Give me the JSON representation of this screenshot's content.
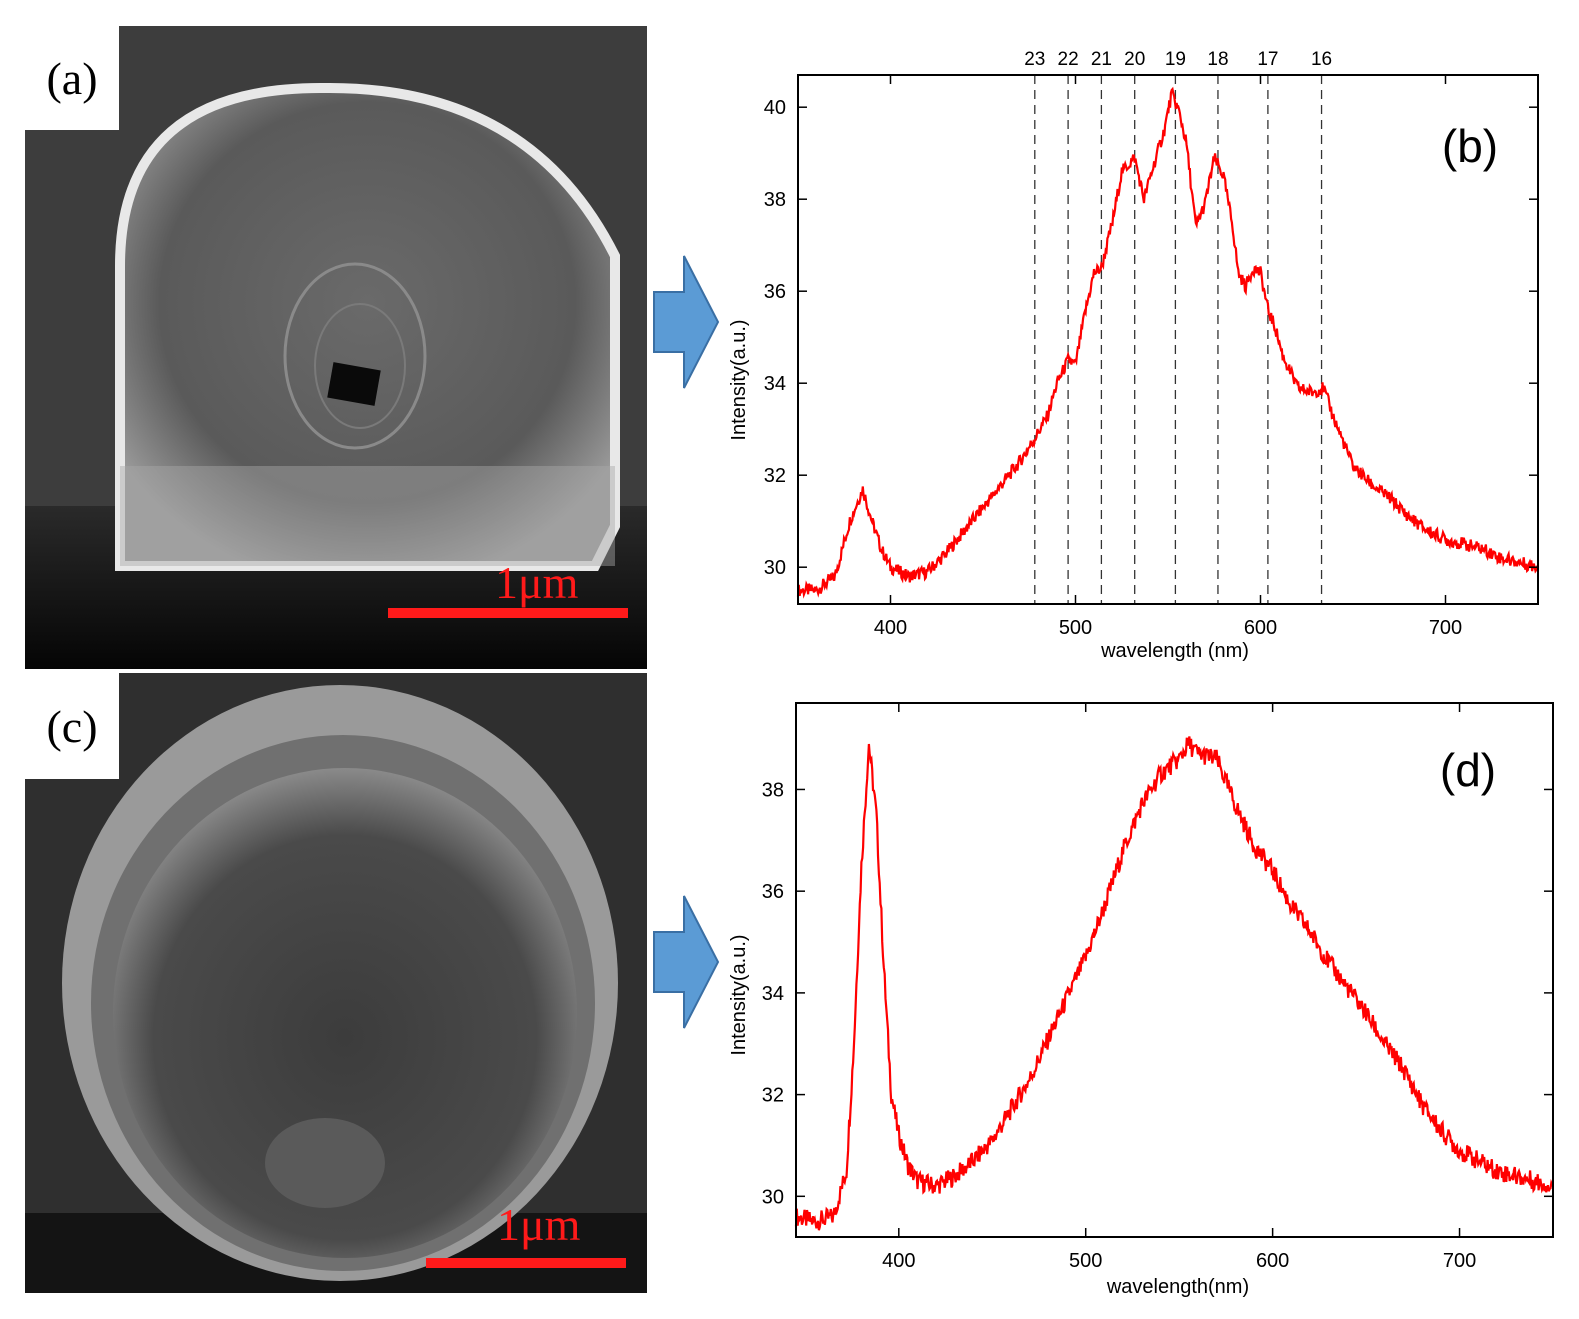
{
  "figure": {
    "panels": [
      {
        "label": "(a)",
        "scale_text": "1μm"
      },
      {
        "label": "(c)",
        "scale_text": "1μm"
      }
    ],
    "arrow_color": "#5b9bd5",
    "line_color": "#ff0000"
  },
  "chart_data": [
    {
      "type": "line",
      "panel_label": "(b)",
      "xlabel": "wavelength (nm)",
      "ylabel": "Intensity(a.u.)",
      "xlim": [
        350,
        750
      ],
      "ylim": [
        29.2,
        40.7
      ],
      "xticks": [
        400,
        500,
        600,
        700
      ],
      "yticks": [
        30,
        32,
        34,
        36,
        38,
        40
      ],
      "mode_lines": [
        {
          "label": "23",
          "x": 478
        },
        {
          "label": "22",
          "x": 496
        },
        {
          "label": "21",
          "x": 514
        },
        {
          "label": "20",
          "x": 532
        },
        {
          "label": "19",
          "x": 554
        },
        {
          "label": "18",
          "x": 577
        },
        {
          "label": "17",
          "x": 604
        },
        {
          "label": "16",
          "x": 633
        }
      ],
      "series": [
        {
          "x": [
            350,
            360,
            370,
            378,
            385,
            390,
            395,
            400,
            405,
            410,
            420,
            430,
            440,
            450,
            460,
            470,
            478,
            485,
            490,
            496,
            500,
            505,
            510,
            514,
            520,
            525,
            532,
            537,
            542,
            548,
            552,
            556,
            560,
            565,
            570,
            575,
            580,
            585,
            588,
            592,
            596,
            600,
            604,
            608,
            612,
            620,
            628,
            634,
            640,
            650,
            660,
            670,
            680,
            690,
            700,
            710,
            720,
            730,
            740,
            750
          ],
          "y": [
            29.5,
            29.5,
            29.8,
            31.0,
            31.7,
            31.0,
            30.4,
            30.0,
            29.9,
            29.8,
            29.9,
            30.3,
            30.8,
            31.3,
            31.8,
            32.3,
            32.8,
            33.3,
            34.0,
            34.5,
            34.4,
            35.5,
            36.4,
            36.5,
            37.5,
            38.6,
            38.9,
            38.0,
            38.7,
            39.5,
            40.3,
            39.9,
            39.2,
            37.4,
            37.9,
            38.9,
            38.5,
            37.4,
            36.4,
            36.1,
            36.5,
            36.4,
            35.6,
            35.2,
            34.6,
            33.9,
            33.8,
            33.9,
            33.2,
            32.2,
            31.8,
            31.5,
            31.1,
            30.8,
            30.6,
            30.5,
            30.4,
            30.2,
            30.1,
            30.0
          ]
        }
      ]
    },
    {
      "type": "line",
      "panel_label": "(d)",
      "xlabel": "wavelength(nm)",
      "ylabel": "Intensity(a.u.)",
      "xlim": [
        345,
        750
      ],
      "ylim": [
        29.2,
        39.7
      ],
      "xticks": [
        400,
        500,
        600,
        700
      ],
      "yticks": [
        30,
        32,
        34,
        36,
        38
      ],
      "series": [
        {
          "x": [
            345,
            355,
            365,
            372,
            376,
            380,
            384,
            388,
            392,
            396,
            400,
            405,
            410,
            420,
            430,
            440,
            450,
            460,
            470,
            480,
            490,
            500,
            510,
            520,
            530,
            540,
            550,
            555,
            560,
            570,
            580,
            590,
            600,
            610,
            620,
            630,
            640,
            650,
            660,
            670,
            680,
            690,
            700,
            710,
            720,
            730,
            740,
            750
          ],
          "y": [
            29.6,
            29.5,
            29.6,
            30.5,
            33.0,
            36.5,
            38.9,
            37.5,
            34.5,
            32.0,
            31.2,
            30.6,
            30.3,
            30.2,
            30.4,
            30.7,
            31.1,
            31.7,
            32.3,
            33.1,
            33.9,
            34.7,
            35.7,
            36.8,
            37.7,
            38.3,
            38.6,
            38.9,
            38.7,
            38.6,
            37.7,
            36.9,
            36.4,
            35.7,
            35.2,
            34.6,
            34.1,
            33.6,
            33.0,
            32.5,
            31.8,
            31.3,
            30.9,
            30.7,
            30.5,
            30.4,
            30.3,
            30.2
          ]
        }
      ]
    }
  ]
}
